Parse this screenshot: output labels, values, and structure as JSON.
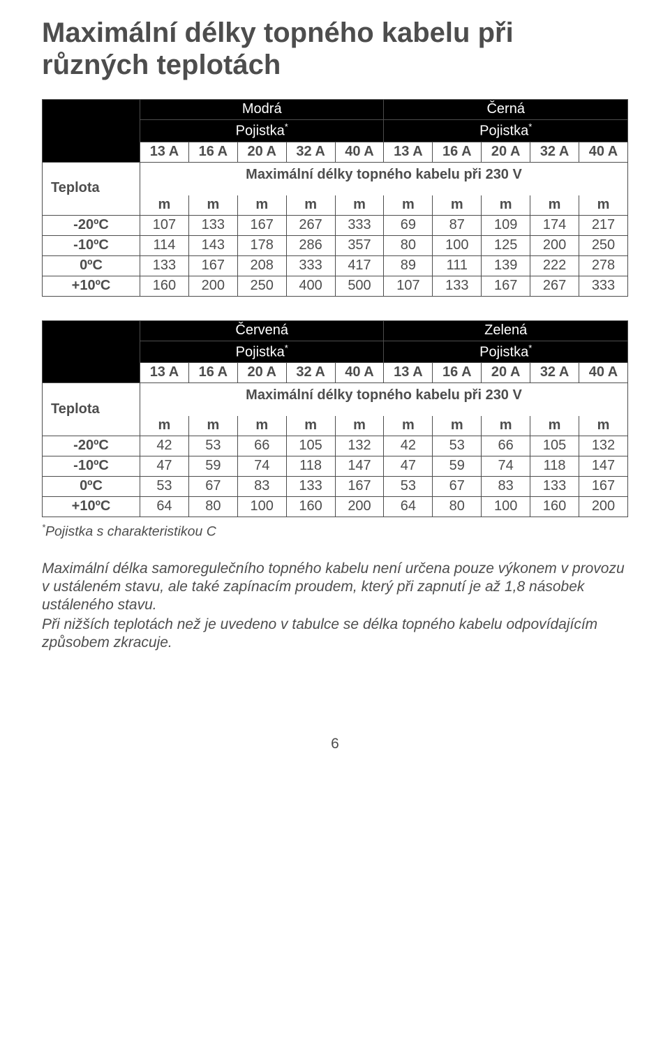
{
  "title": "Maximální délky topného kabelu při různých teplotách",
  "table1": {
    "group_left": "Modrá",
    "group_right": "Černá",
    "pojistka": "Pojistka",
    "amps": [
      "13 A",
      "16 A",
      "20 A",
      "32 A",
      "40 A",
      "13 A",
      "16 A",
      "20 A",
      "32 A",
      "40 A"
    ],
    "teplota_label": "Teplota",
    "caption": "Maximální délky topného kabelu při 230 V",
    "unit": "m",
    "rows": [
      {
        "label": "-20ºC",
        "vals": [
          "107",
          "133",
          "167",
          "267",
          "333",
          "69",
          "87",
          "109",
          "174",
          "217"
        ]
      },
      {
        "label": "-10ºC",
        "vals": [
          "114",
          "143",
          "178",
          "286",
          "357",
          "80",
          "100",
          "125",
          "200",
          "250"
        ]
      },
      {
        "label": "0ºC",
        "vals": [
          "133",
          "167",
          "208",
          "333",
          "417",
          "89",
          "111",
          "139",
          "222",
          "278"
        ]
      },
      {
        "label": "+10ºC",
        "vals": [
          "160",
          "200",
          "250",
          "400",
          "500",
          "107",
          "133",
          "167",
          "267",
          "333"
        ]
      }
    ]
  },
  "table2": {
    "group_left": "Červená",
    "group_right": "Zelená",
    "pojistka": "Pojistka",
    "amps": [
      "13 A",
      "16 A",
      "20 A",
      "32 A",
      "40 A",
      "13 A",
      "16 A",
      "20 A",
      "32 A",
      "40 A"
    ],
    "teplota_label": "Teplota",
    "caption": "Maximální délky topného kabelu při 230 V",
    "unit": "m",
    "rows": [
      {
        "label": "-20ºC",
        "vals": [
          "42",
          "53",
          "66",
          "105",
          "132",
          "42",
          "53",
          "66",
          "105",
          "132"
        ]
      },
      {
        "label": "-10ºC",
        "vals": [
          "47",
          "59",
          "74",
          "118",
          "147",
          "47",
          "59",
          "74",
          "118",
          "147"
        ]
      },
      {
        "label": "0ºC",
        "vals": [
          "53",
          "67",
          "83",
          "133",
          "167",
          "53",
          "67",
          "83",
          "133",
          "167"
        ]
      },
      {
        "label": "+10ºC",
        "vals": [
          "64",
          "80",
          "100",
          "160",
          "200",
          "64",
          "80",
          "100",
          "160",
          "200"
        ]
      }
    ]
  },
  "footnote_prefix": "*",
  "footnote": "Pojistka s charakteristikou C",
  "para1": "Maximální délka samoregulečního topného kabelu není určena pouze výkonem v provozu v ustáleném stavu, ale také zapínacím proudem, který při zapnutí je až 1,8 násobek ustáleného stavu.",
  "para2": "Při nižších teplotách než je uvedeno v tabulce se délka topného kabelu odpovídajícím způsobem zkracuje.",
  "page_number": "6",
  "star": "*"
}
